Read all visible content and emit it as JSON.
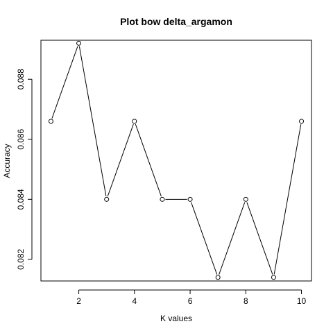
{
  "chart_data": {
    "type": "line",
    "title": "Plot bow delta_argamon",
    "xlabel": "K values",
    "ylabel": "Accuracy",
    "x": [
      1,
      2,
      3,
      4,
      5,
      6,
      7,
      8,
      9,
      10
    ],
    "series": [
      {
        "values": [
          0.0866,
          0.0892,
          0.084,
          0.0866,
          0.084,
          0.084,
          0.0814,
          0.084,
          0.0814,
          0.0866
        ]
      }
    ],
    "xlim": [
      0.64,
      10.36
    ],
    "ylim": [
      0.08128,
      0.0893
    ],
    "x_ticks": [
      2,
      4,
      6,
      8,
      10
    ],
    "x_tick_labels": [
      "2",
      "4",
      "6",
      "8",
      "10"
    ],
    "y_ticks": [
      0.082,
      0.084,
      0.086,
      0.088
    ],
    "y_tick_labels": [
      "0.082",
      "0.084",
      "0.086",
      "0.088"
    ],
    "grid": false,
    "markers": "open-circle"
  }
}
